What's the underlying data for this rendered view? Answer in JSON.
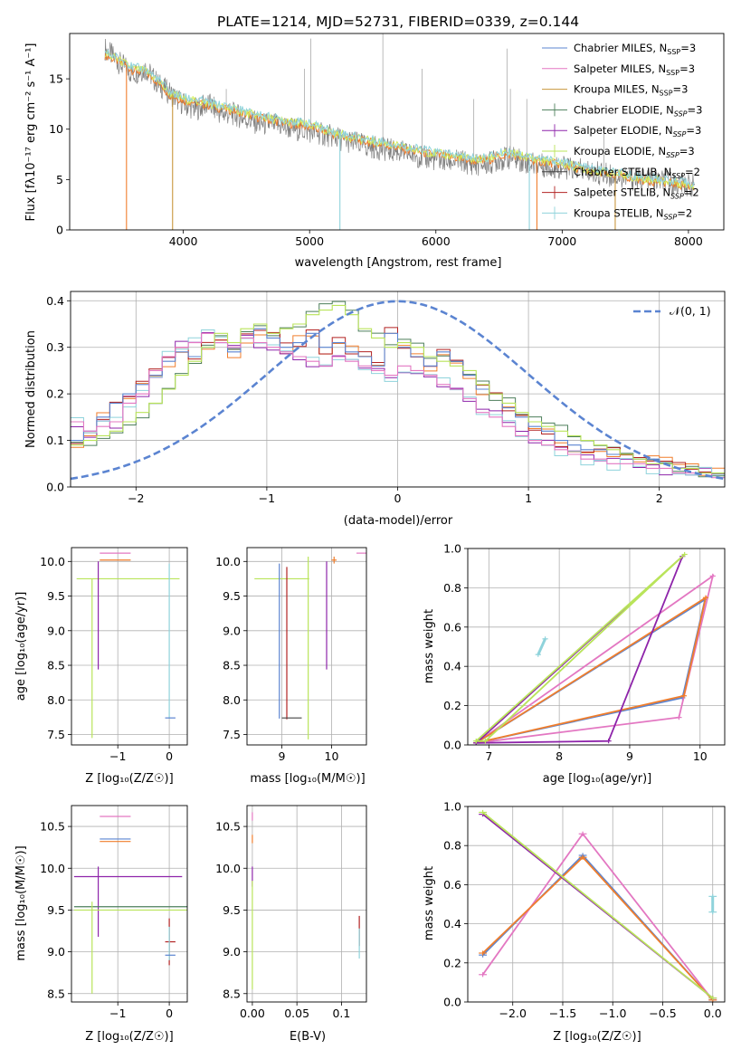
{
  "figure": {
    "title": "PLATE=1214, MJD=52731, FIBERID=0339, z=0.144"
  },
  "colors": {
    "chabrier_miles": "#5b84d1",
    "salpeter_miles": "#e377c2",
    "kroupa_miles": "#c8963c",
    "chabrier_elodie": "#4d7f5b",
    "salpeter_elodie": "#8e24aa",
    "kroupa_elodie": "#b9e45a",
    "chabrier_stelib": "#444444",
    "salpeter_stelib": "#b22222",
    "kroupa_stelib": "#8fd3db",
    "data_gray": "#808080",
    "orange": "#f07e2c",
    "yellowgreen": "#d4ee5a",
    "gauss": "#5b84d1"
  },
  "chart_data": [
    {
      "type": "line",
      "id": "spectrum",
      "xlabel": "wavelength [Angstrom, rest frame]",
      "ylabel": "Flux [f_λ10^-17 erg cm^-2 s^-1 A^-1]",
      "xlim": [
        3100,
        8280
      ],
      "ylim": [
        0,
        19.5
      ],
      "xticks": [
        4000,
        5000,
        6000,
        7000,
        8000
      ],
      "yticks": [
        0,
        5,
        10,
        15
      ],
      "legend_position": "top-right",
      "legend": [
        "Chabrier MILES, N_SSP=3",
        "Salpeter MILES, N_SSP=3",
        "Kroupa MILES, N_SSP=3",
        "Chabrier ELODIE, N_SSP=3",
        "Salpeter ELODIE, N_SSP=3",
        "Kroupa ELODIE, N_SSP=3",
        "Chabrier STELIB, N_SSP=2",
        "Salpeter STELIB, N_SSP=2",
        "Kroupa STELIB, N_SSP=2"
      ],
      "series": [
        {
          "name": "observed",
          "x": [
            3380,
            3500,
            3600,
            3700,
            3800,
            3900,
            4000,
            4100,
            4200,
            4300,
            4400,
            4500,
            4600,
            4700,
            4800,
            4900,
            5000,
            5100,
            5200,
            5300,
            5400,
            5500,
            5600,
            5700,
            5800,
            5900,
            6000,
            6100,
            6200,
            6300,
            6400,
            6500,
            6600,
            6700,
            6800,
            6900,
            7000,
            7100,
            7200,
            7300,
            7400,
            7500,
            7600,
            7700,
            7800,
            7900,
            8000,
            8050
          ],
          "y": [
            18,
            16.5,
            15.5,
            16,
            14.5,
            13.5,
            12.5,
            12,
            12.5,
            11.5,
            11.5,
            11,
            10.5,
            10.5,
            10.2,
            10,
            9.8,
            9.5,
            9.2,
            8.8,
            8.5,
            8.2,
            8,
            7.8,
            7.5,
            7.2,
            7,
            6.8,
            6.8,
            6.5,
            6.5,
            7,
            7.2,
            6.8,
            6.5,
            6.3,
            6.2,
            6,
            5.8,
            5.6,
            5.4,
            5.2,
            5,
            5,
            4.8,
            4.6,
            4.5,
            4.4
          ]
        },
        {
          "name": "model",
          "x": [
            3380,
            3500,
            3600,
            3700,
            3800,
            3900,
            4000,
            4100,
            4200,
            4300,
            4400,
            4500,
            4600,
            4700,
            4800,
            4900,
            5000,
            5100,
            5200,
            5300,
            5400,
            5500,
            5600,
            5700,
            5800,
            5900,
            6000,
            6100,
            6200,
            6300,
            6400,
            6500,
            6600,
            6700,
            6800,
            6900,
            7000,
            7100,
            7200,
            7300,
            7400,
            7500,
            7600,
            7700,
            7800,
            7900,
            8000,
            8050
          ],
          "y": [
            17.5,
            16.8,
            16,
            15.8,
            14.8,
            13.5,
            13,
            12.8,
            12.5,
            12.2,
            12,
            11.6,
            11.3,
            11,
            10.8,
            10.6,
            10.4,
            10,
            9.6,
            9.3,
            9,
            8.8,
            8.6,
            8.3,
            8,
            7.8,
            7.6,
            7.4,
            7.2,
            7,
            7,
            7.5,
            7.6,
            7.3,
            7,
            6.8,
            6.6,
            6.3,
            6,
            5.8,
            5.6,
            5.4,
            5.2,
            5,
            4.9,
            4.7,
            4.5,
            4.4
          ]
        }
      ]
    },
    {
      "type": "area",
      "id": "residual_distribution",
      "xlabel": "(data-model)/error",
      "ylabel": "Normed distribution",
      "xlim": [
        -2.5,
        2.5
      ],
      "ylim": [
        0,
        0.42
      ],
      "xticks": [
        -2,
        -1,
        0,
        1,
        2
      ],
      "yticks": [
        0.0,
        0.1,
        0.2,
        0.3,
        0.4
      ],
      "legend_position": "top-right",
      "legend": [
        "N(0,1)"
      ],
      "bin_centers": [
        -2.45,
        -2.35,
        -2.25,
        -2.15,
        -2.05,
        -1.95,
        -1.85,
        -1.75,
        -1.65,
        -1.55,
        -1.45,
        -1.35,
        -1.25,
        -1.15,
        -1.05,
        -0.95,
        -0.85,
        -0.75,
        -0.65,
        -0.55,
        -0.45,
        -0.35,
        -0.25,
        -0.15,
        -0.05,
        0.05,
        0.15,
        0.25,
        0.35,
        0.45,
        0.55,
        0.65,
        0.75,
        0.85,
        0.95,
        1.05,
        1.15,
        1.25,
        1.35,
        1.45,
        1.55,
        1.65,
        1.75,
        1.85,
        1.95,
        2.05,
        2.15,
        2.25,
        2.35,
        2.45
      ],
      "series": [
        {
          "name": "Chabrier MILES, N_SSP=3",
          "values": [
            0.1,
            0.12,
            0.15,
            0.18,
            0.2,
            0.22,
            0.24,
            0.27,
            0.29,
            0.28,
            0.3,
            0.31,
            0.29,
            0.32,
            0.34,
            0.32,
            0.3,
            0.31,
            0.33,
            0.3,
            0.31,
            0.29,
            0.28,
            0.26,
            0.33,
            0.3,
            0.28,
            0.26,
            0.29,
            0.27,
            0.24,
            0.21,
            0.2,
            0.17,
            0.15,
            0.13,
            0.12,
            0.1,
            0.09,
            0.08,
            0.08,
            0.07,
            0.07,
            0.06,
            0.06,
            0.05,
            0.04,
            0.04,
            0.03,
            0.03
          ]
        },
        {
          "name": "Salpeter MILES, N_SSP=3",
          "values": [
            0.14,
            0.12,
            0.13,
            0.14,
            0.18,
            0.2,
            0.25,
            0.28,
            0.3,
            0.31,
            0.33,
            0.31,
            0.3,
            0.32,
            0.31,
            0.3,
            0.29,
            0.28,
            0.27,
            0.26,
            0.28,
            0.27,
            0.26,
            0.25,
            0.24,
            0.26,
            0.25,
            0.24,
            0.22,
            0.21,
            0.19,
            0.16,
            0.15,
            0.13,
            0.11,
            0.1,
            0.09,
            0.08,
            0.07,
            0.06,
            0.06,
            0.05,
            0.05,
            0.05,
            0.04,
            0.04,
            0.03,
            0.03,
            0.03,
            0.02
          ]
        },
        {
          "name": "Kroupa ELODIE, N_SSP=3",
          "values": [
            0.09,
            0.1,
            0.11,
            0.12,
            0.14,
            0.16,
            0.18,
            0.21,
            0.24,
            0.27,
            0.3,
            0.33,
            0.31,
            0.34,
            0.35,
            0.33,
            0.34,
            0.35,
            0.37,
            0.38,
            0.39,
            0.37,
            0.34,
            0.32,
            0.3,
            0.31,
            0.3,
            0.28,
            0.27,
            0.26,
            0.25,
            0.22,
            0.2,
            0.18,
            0.16,
            0.14,
            0.13,
            0.12,
            0.11,
            0.1,
            0.09,
            0.08,
            0.07,
            0.06,
            0.05,
            0.05,
            0.04,
            0.04,
            0.03,
            0.03
          ]
        }
      ],
      "gauss": {
        "name": "N(0,1)",
        "mean": 0,
        "sigma": 1
      }
    },
    {
      "type": "scatter",
      "id": "age_vs_Z",
      "xlabel": "Z [log10(Z/Z☉)]",
      "ylabel": "age [log10(age/yr)]",
      "xlim": [
        -1.9,
        0.35
      ],
      "ylim": [
        7.35,
        10.2
      ],
      "xticks": [
        -1,
        0
      ],
      "yticks": [
        7.5,
        8.0,
        8.5,
        9.0,
        9.5,
        10.0
      ]
    },
    {
      "type": "scatter",
      "id": "age_vs_mass",
      "xlabel": "mass [log10(M/M☉)]",
      "xlim": [
        8.3,
        10.7
      ],
      "ylim": [
        7.35,
        10.2
      ],
      "xticks": [
        9,
        10
      ],
      "yticks": [
        7.5,
        8.0,
        8.5,
        9.0,
        9.5,
        10.0
      ]
    },
    {
      "type": "line",
      "id": "massweight_vs_age",
      "xlabel": "age [log10(age/yr)]",
      "ylabel": "mass weight",
      "xlim": [
        6.7,
        10.35
      ],
      "ylim": [
        0,
        1
      ],
      "xticks": [
        7,
        8,
        9,
        10
      ],
      "yticks": [
        0.0,
        0.2,
        0.4,
        0.6,
        0.8,
        1.0
      ],
      "series": [
        {
          "name": "Chabrier MILES, N_SSP=3",
          "x": [
            6.82,
            9.75,
            10.07,
            6.82
          ],
          "y": [
            0.01,
            0.24,
            0.74,
            0.01
          ]
        },
        {
          "name": "Salpeter MILES, N_SSP=3",
          "x": [
            6.82,
            9.7,
            10.18,
            6.82
          ],
          "y": [
            0.01,
            0.14,
            0.86,
            0.01
          ]
        },
        {
          "name": "Kroupa MILES, N_SSP=3",
          "x": [
            6.82,
            9.77,
            10.08,
            6.82
          ],
          "y": [
            0.01,
            0.25,
            0.75,
            0.01
          ]
        },
        {
          "name": "Salpeter ELODIE, N_SSP=3",
          "x": [
            6.82,
            8.7,
            9.75,
            6.82
          ],
          "y": [
            0.01,
            0.02,
            0.96,
            0.01
          ]
        },
        {
          "name": "Kroupa ELODIE, N_SSP=3",
          "x": [
            6.82,
            6.95,
            9.78,
            6.82
          ],
          "y": [
            0.02,
            0.02,
            0.97,
            0.02
          ]
        },
        {
          "name": "Kroupa STELIB, N_SSP=2",
          "x": [
            7.7,
            7.8
          ],
          "y": [
            0.46,
            0.54
          ]
        }
      ]
    },
    {
      "type": "scatter",
      "id": "mass_vs_Z",
      "xlabel": "Z [log10(Z/Z☉)]",
      "ylabel": "mass [log10(M/M☉)]",
      "xlim": [
        -1.9,
        0.35
      ],
      "ylim": [
        8.4,
        10.75
      ],
      "xticks": [
        -1,
        0
      ],
      "yticks": [
        8.5,
        9.0,
        9.5,
        10.0,
        10.5
      ]
    },
    {
      "type": "scatter",
      "id": "mass_vs_EBV",
      "xlabel": "E(B-V)",
      "xlim": [
        -0.006,
        0.128
      ],
      "ylim": [
        8.4,
        10.75
      ],
      "xticks": [
        0.0,
        0.05,
        0.1
      ],
      "yticks": [
        8.5,
        9.0,
        9.5,
        10.0,
        10.5
      ]
    },
    {
      "type": "line",
      "id": "massweight_vs_Z",
      "xlabel": "Z [log10(Z/Z☉)]",
      "ylabel": "mass weight",
      "xlim": [
        -2.45,
        0.12
      ],
      "ylim": [
        0,
        1
      ],
      "xticks": [
        -2.0,
        -1.5,
        -1.0,
        -0.5,
        0.0
      ],
      "yticks": [
        0.0,
        0.2,
        0.4,
        0.6,
        0.8,
        1.0
      ],
      "series": [
        {
          "name": "Chabrier MILES, N_SSP=3",
          "x": [
            -2.3,
            -1.3,
            0.0
          ],
          "y": [
            0.24,
            0.75,
            0.01
          ]
        },
        {
          "name": "Salpeter MILES, N_SSP=3",
          "x": [
            -2.3,
            -1.3,
            0.0
          ],
          "y": [
            0.14,
            0.86,
            0.01
          ]
        },
        {
          "name": "Kroupa MILES, N_SSP=3",
          "x": [
            -2.3,
            -1.3,
            0.0
          ],
          "y": [
            0.25,
            0.74,
            0.01
          ]
        },
        {
          "name": "Salpeter ELODIE, N_SSP=3",
          "x": [
            -2.3,
            0.0
          ],
          "y": [
            0.96,
            0.02
          ]
        },
        {
          "name": "Kroupa ELODIE, N_SSP=3",
          "x": [
            -2.3,
            0.0
          ],
          "y": [
            0.97,
            0.02
          ]
        },
        {
          "name": "Kroupa STELIB, N_SSP=2",
          "x": [
            0.0,
            0.0
          ],
          "y": [
            0.46,
            0.54
          ]
        }
      ]
    }
  ],
  "labels": {
    "spec_ylabel": "Flux [fλ10⁻¹⁷ erg cm⁻² s⁻¹ A⁻¹]",
    "spec_xlabel": "wavelength [Angstrom, rest frame]",
    "hist_ylabel": "Normed distribution",
    "hist_xlabel": "(data-model)/error",
    "gauss_legend": "𝒩(0, 1)",
    "age_ylabel": "age  [log₁₀(age/yr)]",
    "z_xlabel": "Z [log₁₀(Z/Z☉)]",
    "mass_xlabel": "mass [log₁₀(M/M☉)]",
    "mw_ylabel": "mass weight",
    "age_xlabel": "age  [log₁₀(age/yr)]",
    "mass_ylabel": "mass [log₁₀(M/M☉)]",
    "ebv_xlabel": "E(B-V)"
  },
  "legend_items": [
    "Chabrier MILES, N_SSP=3",
    "Salpeter MILES, N_SSP=3",
    "Kroupa MILES, N_SSP=3",
    "Chabrier ELODIE, N_SSP=3",
    "Salpeter ELODIE, N_SSP=3",
    "Kroupa ELODIE, N_SSP=3",
    "Chabrier STELIB, N_SSP=2",
    "Salpeter STELIB, N_SSP=2",
    "Kroupa STELIB, N_SSP=2"
  ]
}
